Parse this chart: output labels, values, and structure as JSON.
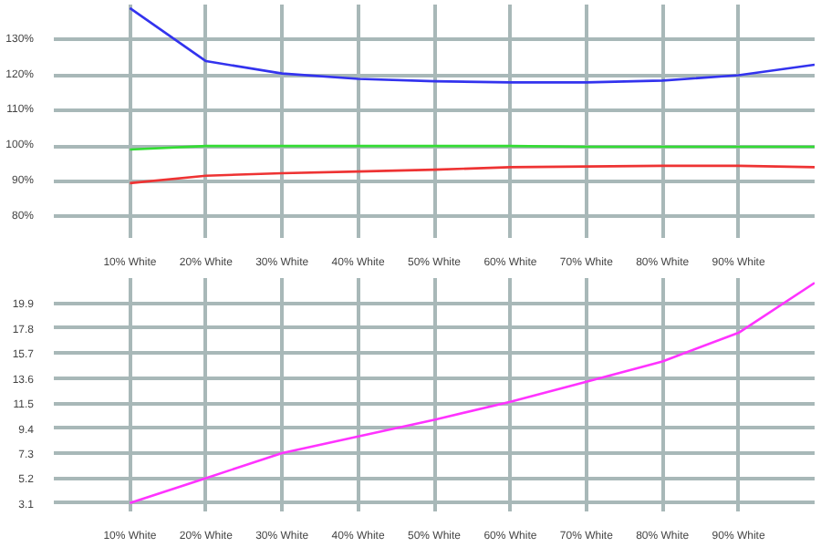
{
  "chart_data": [
    {
      "type": "line",
      "x": [
        10,
        20,
        30,
        40,
        50,
        60,
        70,
        80,
        90,
        100
      ],
      "xlim": [
        0,
        100
      ],
      "xticks": [
        {
          "value": 10,
          "label": "10% White"
        },
        {
          "value": 20,
          "label": "20% White"
        },
        {
          "value": 30,
          "label": "30% White"
        },
        {
          "value": 40,
          "label": "40% White"
        },
        {
          "value": 50,
          "label": "50% White"
        },
        {
          "value": 60,
          "label": "60% White"
        },
        {
          "value": 70,
          "label": "70% White"
        },
        {
          "value": 80,
          "label": "80% White"
        },
        {
          "value": 90,
          "label": "90% White"
        }
      ],
      "ylim": [
        74,
        140
      ],
      "yticks": [
        {
          "value": 80,
          "label": "80%"
        },
        {
          "value": 90,
          "label": "90%"
        },
        {
          "value": 100,
          "label": "100%"
        },
        {
          "value": 110,
          "label": "110%"
        },
        {
          "value": 120,
          "label": "120%"
        },
        {
          "value": 130,
          "label": "130%"
        }
      ],
      "grid": true,
      "marker": "none",
      "line_style": "solid",
      "series": [
        {
          "color": "#3333ee",
          "values": [
            139,
            124,
            120.5,
            119,
            118.3,
            118,
            118,
            118.5,
            120,
            123
          ]
        },
        {
          "color": "#33dd33",
          "values": [
            99,
            100,
            100,
            100,
            100,
            100,
            99.8,
            99.8,
            99.8,
            99.8
          ]
        },
        {
          "color": "#ee3333",
          "values": [
            89.5,
            91.6,
            92.3,
            92.8,
            93.3,
            94,
            94.2,
            94.4,
            94.4,
            94
          ]
        }
      ]
    },
    {
      "type": "line",
      "x": [
        10,
        20,
        30,
        40,
        50,
        60,
        70,
        80,
        90,
        100
      ],
      "xlim": [
        0,
        100
      ],
      "xticks": [
        {
          "value": 10,
          "label": "10% White"
        },
        {
          "value": 20,
          "label": "20% White"
        },
        {
          "value": 30,
          "label": "30% White"
        },
        {
          "value": 40,
          "label": "40% White"
        },
        {
          "value": 50,
          "label": "50% White"
        },
        {
          "value": 60,
          "label": "60% White"
        },
        {
          "value": 70,
          "label": "70% White"
        },
        {
          "value": 80,
          "label": "80% White"
        },
        {
          "value": 90,
          "label": "90% White"
        }
      ],
      "ylim": [
        2.4,
        22
      ],
      "yticks": [
        3.1,
        5.2,
        7.3,
        9.4,
        11.5,
        13.6,
        15.7,
        17.8,
        19.9
      ],
      "grid": true,
      "marker": "none",
      "line_style": "solid",
      "series": [
        {
          "color": "#ff33ff",
          "values": [
            3.1,
            5.2,
            7.3,
            8.7,
            10.1,
            11.6,
            13.3,
            15.0,
            17.4,
            21.6
          ]
        }
      ]
    }
  ]
}
